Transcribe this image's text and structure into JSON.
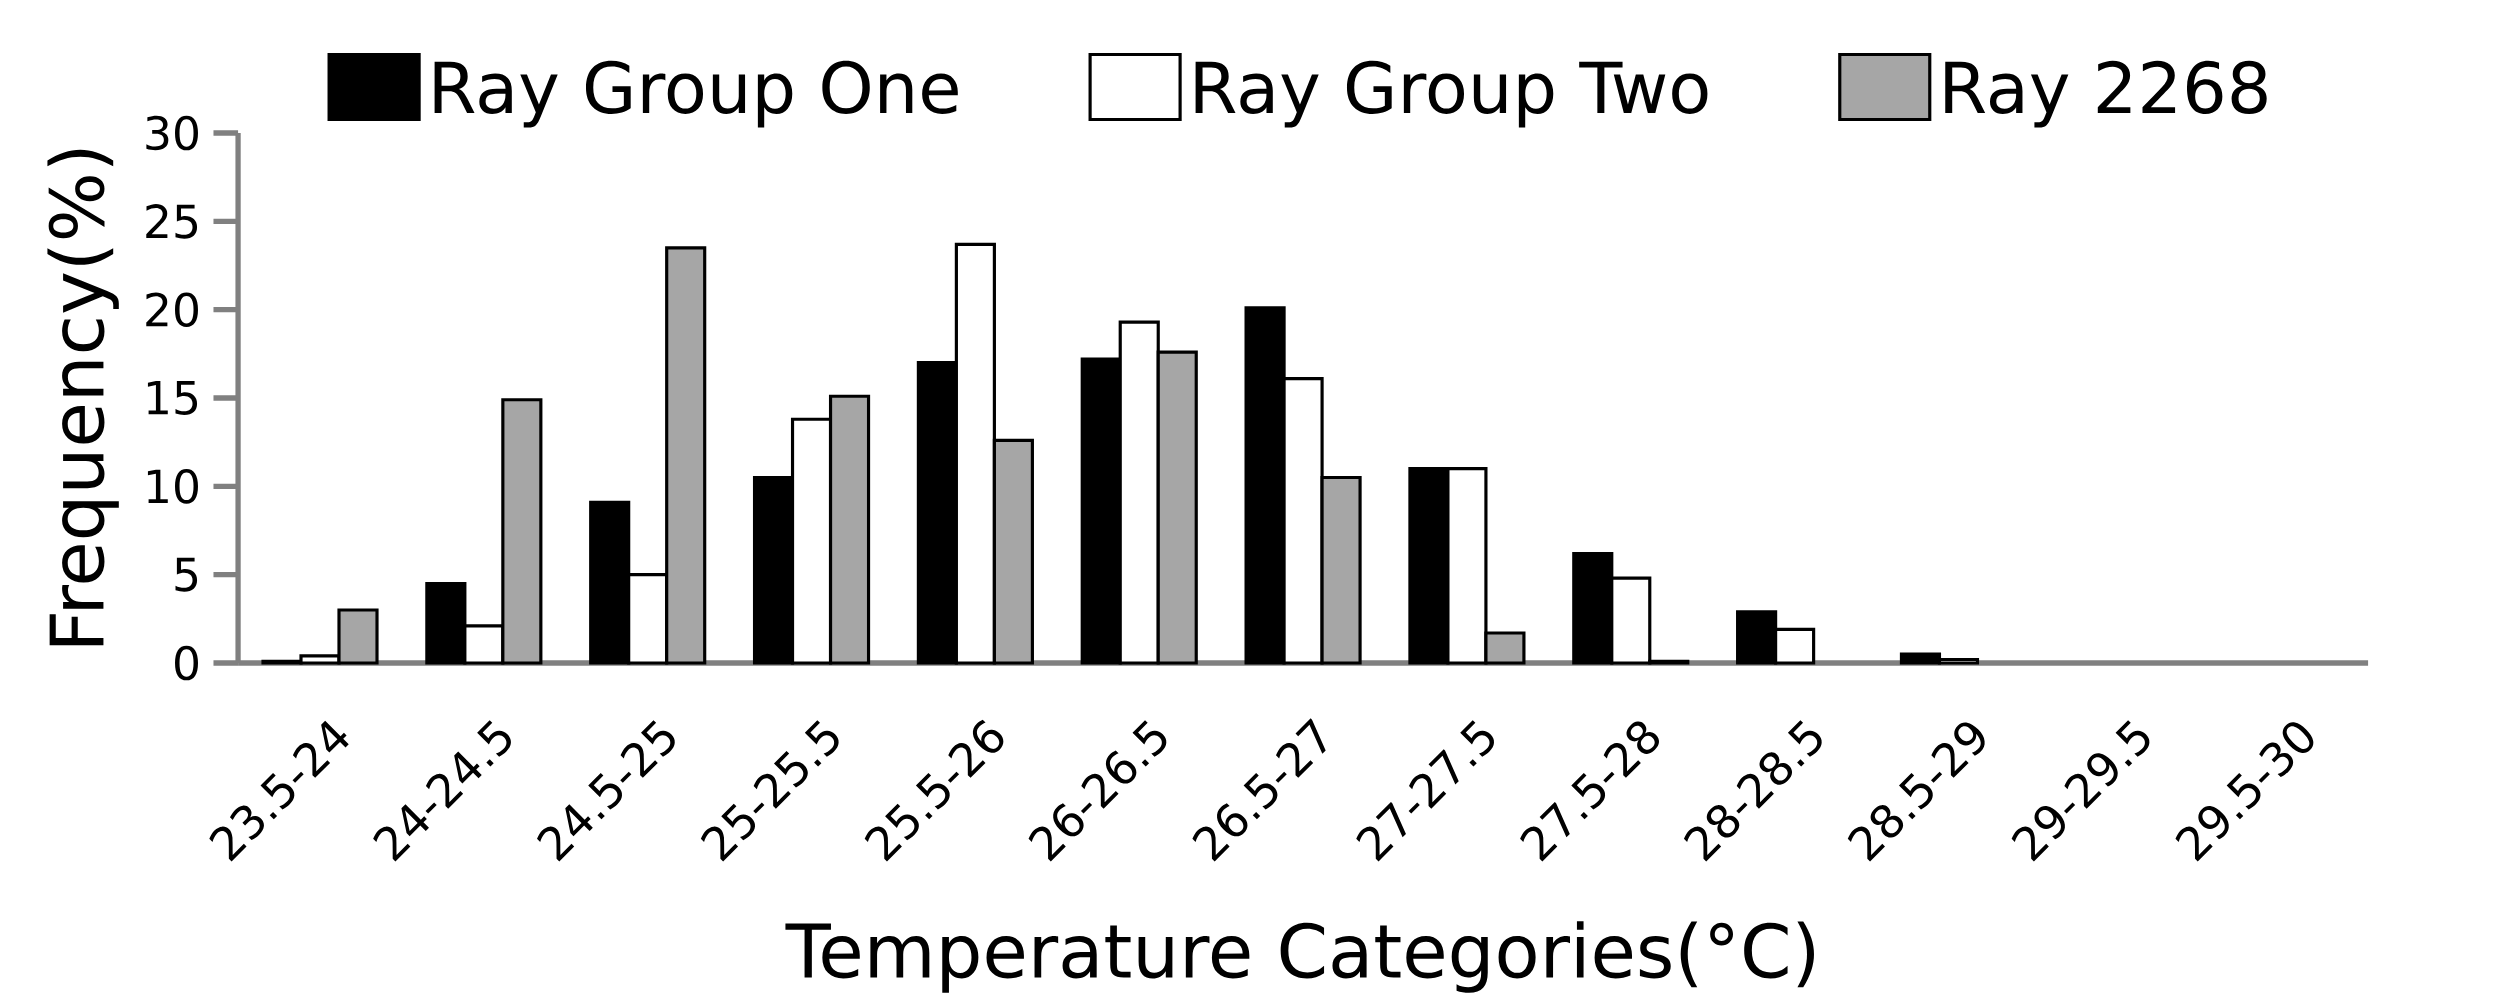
{
  "chart_data": {
    "type": "bar",
    "xlabel": "Temperature Categories(°C)",
    "ylabel": "Frequency(%)",
    "categories": [
      "23.5-24",
      "24-24.5",
      "24.5-25",
      "25-25.5",
      "25.5-26",
      "26-26.5",
      "26.5-27",
      "27-27.5",
      "27.5-28",
      "28-28.5",
      "28.5-29",
      "29-29.5",
      "29.5-30"
    ],
    "series": [
      {
        "name": "Ray Group One",
        "color": "#000000",
        "values": [
          0.1,
          4.5,
          9.1,
          10.5,
          17,
          17.2,
          20.1,
          11,
          6.2,
          2.9,
          0.5,
          0,
          0
        ]
      },
      {
        "name": "Ray Group Two",
        "color": "#ffffff",
        "values": [
          0.4,
          2.1,
          5,
          13.8,
          23.7,
          19.3,
          16.1,
          11,
          4.8,
          1.9,
          0.2,
          0,
          0
        ]
      },
      {
        "name": "Ray 2268",
        "color": "#a6a6a6",
        "values": [
          3,
          14.9,
          23.5,
          15.1,
          12.6,
          17.6,
          10.5,
          1.7,
          0.1,
          0,
          0,
          0,
          0
        ]
      }
    ],
    "ylim": [
      0,
      30
    ],
    "yticks": [
      0,
      5,
      10,
      15,
      20,
      25,
      30
    ],
    "grid": false,
    "legend": "top"
  }
}
